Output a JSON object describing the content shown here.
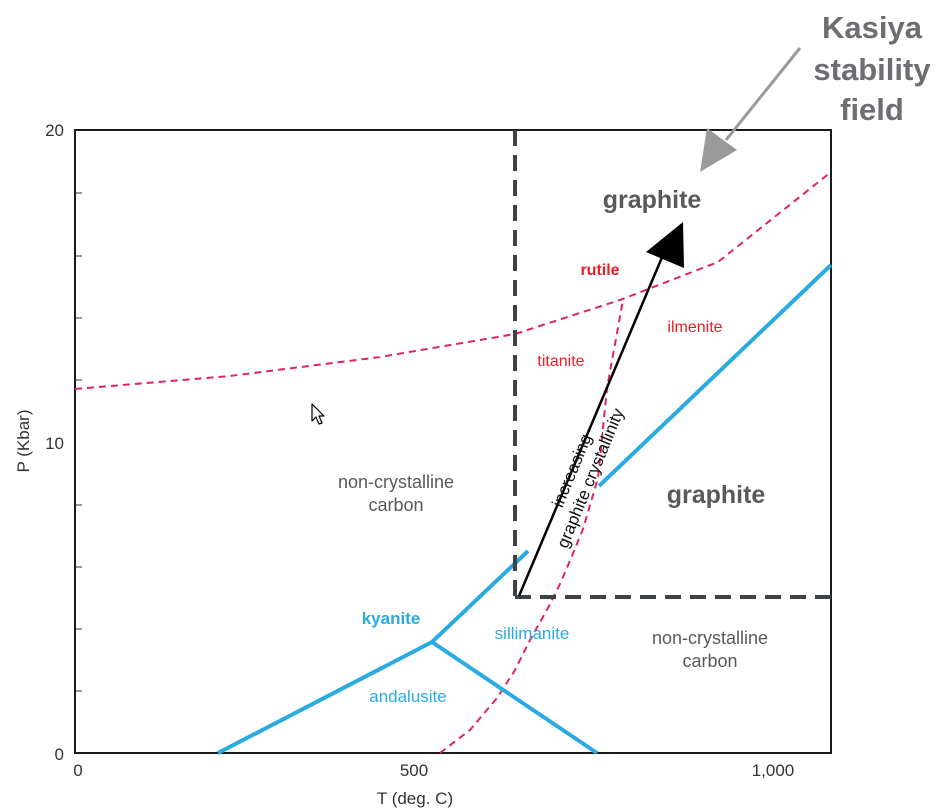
{
  "colors": {
    "mineral_lines": "#29abe2",
    "rutile_titanite_lines": "#e0245e",
    "stability_box": "#3f4244",
    "crystallinity_arrow": "#000000",
    "callout_arrow": "#9a9a9a",
    "frame": "#1a1a1a"
  },
  "axes": {
    "x": {
      "label": "T (deg. C)",
      "range": [
        0,
        1080
      ],
      "ticks": [
        "0",
        "500",
        "1,000"
      ]
    },
    "y": {
      "label": "P (Kbar)",
      "range": [
        0,
        20
      ],
      "ticks": [
        "0",
        "10",
        "20"
      ]
    }
  },
  "callout": {
    "lines": [
      "Kasiya",
      "stability",
      "field"
    ]
  },
  "labels": {
    "graphite_upper": "graphite",
    "graphite_right": "graphite",
    "rutile": "rutile",
    "ilmenite": "ilmenite",
    "titanite": "titanite",
    "non_crystalline_left": [
      "non-crystalline",
      "carbon"
    ],
    "non_crystalline_right": [
      "non-crystalline",
      "carbon"
    ],
    "kyanite": "kyanite",
    "sillimanite": "sillimanite",
    "andalusite": "andalusite"
  },
  "arrow_label": {
    "lines": [
      "increasing",
      "graphite crystallinity"
    ]
  },
  "icons": {
    "cursor": "mouse-pointer-icon"
  }
}
